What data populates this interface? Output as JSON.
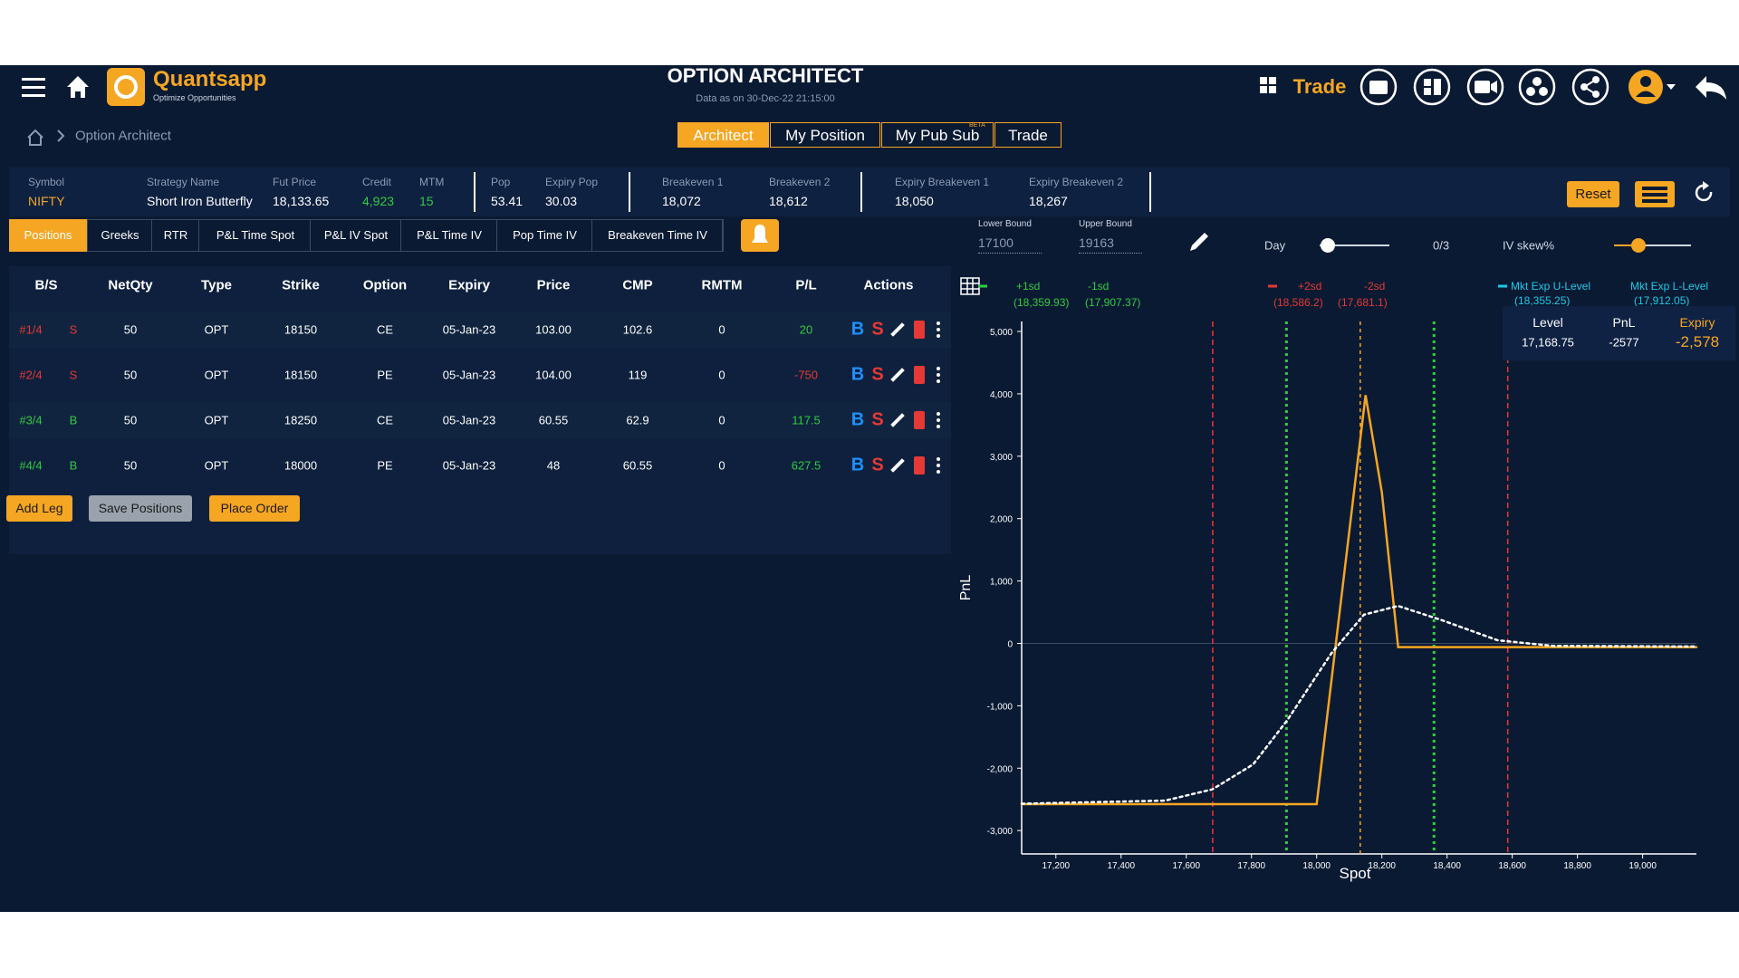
{
  "header": {
    "brand": "Quantsapp",
    "tagline": "Optimize Opportunities",
    "title": "OPTION ARCHITECT",
    "subtitle": "Data as on 30-Dec-22 21:15:00",
    "trade": "Trade"
  },
  "breadcrumb": "Option Architect",
  "tabs": [
    "Architect",
    "My Position",
    "My Pub Sub",
    "Trade"
  ],
  "beta": "BETA",
  "summary": [
    {
      "label": "Symbol",
      "value": "NIFTY",
      "color": "#f5a623"
    },
    {
      "label": "Strategy Name",
      "value": "Short Iron Butterfly",
      "color": "#ffffff"
    },
    {
      "label": "Fut Price",
      "value": "18,133.65",
      "color": "#ffffff"
    },
    {
      "label": "Credit",
      "value": "4,923",
      "color": "#2ecc40"
    },
    {
      "label": "MTM",
      "value": "15",
      "color": "#2ecc40"
    },
    {
      "label": "Pop",
      "value": "53.41",
      "color": "#ffffff"
    },
    {
      "label": "Expiry Pop",
      "value": "30.03",
      "color": "#ffffff"
    },
    {
      "label": "Breakeven 1",
      "value": "18,072",
      "color": "#ffffff"
    },
    {
      "label": "Breakeven 2",
      "value": "18,612",
      "color": "#ffffff"
    },
    {
      "label": "Expiry Breakeven 1",
      "value": "18,050",
      "color": "#ffffff"
    },
    {
      "label": "Expiry Breakeven 2",
      "value": "18,267",
      "color": "#ffffff"
    }
  ],
  "reset": "Reset",
  "subtabs": [
    "Positions",
    "Greeks",
    "RTR",
    "P&L Time Spot",
    "P&L IV Spot",
    "P&L Time IV",
    "Pop Time IV",
    "Breakeven Time IV"
  ],
  "bounds": [
    {
      "label": "Lower Bound",
      "value": "17100"
    },
    {
      "label": "Upper Bound",
      "value": "19163"
    }
  ],
  "controls": {
    "day": "Day",
    "count": "0/3",
    "iv_skew": "IV skew%"
  },
  "table": {
    "columns": [
      "B/S",
      "NetQty",
      "Type",
      "Strike",
      "Option",
      "Expiry",
      "Price",
      "CMP",
      "RMTM",
      "P/L",
      "Actions"
    ],
    "rows": [
      {
        "leg": "#1/4",
        "side": "S",
        "netqty": "50",
        "type": "OPT",
        "strike": "18150",
        "option": "CE",
        "expiry": "05-Jan-23",
        "price": "103.00",
        "cmp": "102.6",
        "rmtm": "0",
        "pl": "20",
        "side_color": "#e53935",
        "pl_color": "#2ecc40"
      },
      {
        "leg": "#2/4",
        "side": "S",
        "netqty": "50",
        "type": "OPT",
        "strike": "18150",
        "option": "PE",
        "expiry": "05-Jan-23",
        "price": "104.00",
        "cmp": "119",
        "rmtm": "0",
        "pl": "-750",
        "side_color": "#e53935",
        "pl_color": "#e53935"
      },
      {
        "leg": "#3/4",
        "side": "B",
        "netqty": "50",
        "type": "OPT",
        "strike": "18250",
        "option": "CE",
        "expiry": "05-Jan-23",
        "price": "60.55",
        "cmp": "62.9",
        "rmtm": "0",
        "pl": "117.5",
        "side_color": "#2ecc40",
        "pl_color": "#2ecc40"
      },
      {
        "leg": "#4/4",
        "side": "B",
        "netqty": "50",
        "type": "OPT",
        "strike": "18000",
        "option": "PE",
        "expiry": "05-Jan-23",
        "price": "48",
        "cmp": "60.55",
        "rmtm": "0",
        "pl": "627.5",
        "side_color": "#2ecc40",
        "pl_color": "#2ecc40"
      }
    ]
  },
  "actions": {
    "buy": "B",
    "sell": "S"
  },
  "buttons": [
    "Add Leg",
    "Save Positions",
    "Place Order"
  ],
  "chart_data": {
    "type": "line",
    "xlabel": "Spot",
    "ylabel": "PnL",
    "xlim": [
      17095,
      19165
    ],
    "ylim": [
      -3375,
      5160
    ],
    "xticks": [
      {
        "value": 17200,
        "label": "17,200"
      },
      {
        "value": 17400,
        "label": "17,400"
      },
      {
        "value": 17600,
        "label": "17,600"
      },
      {
        "value": 17800,
        "label": "17,800"
      },
      {
        "value": 18000,
        "label": "18,000"
      },
      {
        "value": 18200,
        "label": "18,200"
      },
      {
        "value": 18400,
        "label": "18,400"
      },
      {
        "value": 18600,
        "label": "18,600"
      },
      {
        "value": 18800,
        "label": "18,800"
      },
      {
        "value": 19000,
        "label": "19,000"
      }
    ],
    "yticks": [
      {
        "value": 5000,
        "label": "5,000"
      },
      {
        "value": 4000,
        "label": "4,000"
      },
      {
        "value": 3000,
        "label": "3,000"
      },
      {
        "value": 2000,
        "label": "2,000"
      },
      {
        "value": 1000,
        "label": "1,000"
      },
      0,
      {
        "value": -1000,
        "label": "-1,000"
      },
      {
        "value": -2000,
        "label": "-2,000"
      },
      {
        "value": -3000,
        "label": "-3,000"
      }
    ],
    "series": [
      {
        "name": "Expiry",
        "color": "#f5a623",
        "style": "solid",
        "x": [
          17095,
          18000,
          18150,
          18200,
          18250,
          19165
        ],
        "values": [
          -2577,
          -2577,
          3980,
          2420,
          -60,
          -60
        ]
      },
      {
        "color": "#ffffff",
        "style": "dotted",
        "x": [
          17095,
          17535,
          17680,
          17805,
          17910,
          18045,
          18145,
          18250,
          18385,
          18555,
          18725,
          19165
        ],
        "values": [
          -2570,
          -2520,
          -2340,
          -1940,
          -1230,
          -160,
          460,
          600,
          370,
          50,
          -40,
          -50
        ]
      }
    ],
    "markers": [
      {
        "name": "+1sd",
        "value": 18359.93,
        "label": "(18,359.93)",
        "color": "#2ecc40",
        "style": "dotted"
      },
      {
        "name": "-1sd",
        "value": 17907.37,
        "label": "(17,907.37)",
        "color": "#2ecc40",
        "style": "dotted"
      },
      {
        "name": "+2sd",
        "value": 18586.2,
        "label": "(18,586.2)",
        "color": "#e53935",
        "style": "dashed"
      },
      {
        "name": "-2sd",
        "value": 17681.1,
        "label": "(17,681.1)",
        "color": "#e53935",
        "style": "dashed"
      }
    ],
    "levels": [
      {
        "name": "Mkt Exp U-Level",
        "label": "(18,355.25)",
        "color": "#1ec8e6"
      },
      {
        "name": "Mkt Exp L-Level",
        "label": "(17,912.05)",
        "color": "#1ec8e6"
      }
    ],
    "spot_line": {
      "value": 18133.65,
      "color": "#f5a623"
    },
    "tooltip": {
      "level_label": "Level",
      "level": "17,168.75",
      "pnl_label": "PnL",
      "pnl": "-2577",
      "expiry_label": "Expiry",
      "expiry": "-2,578"
    }
  }
}
